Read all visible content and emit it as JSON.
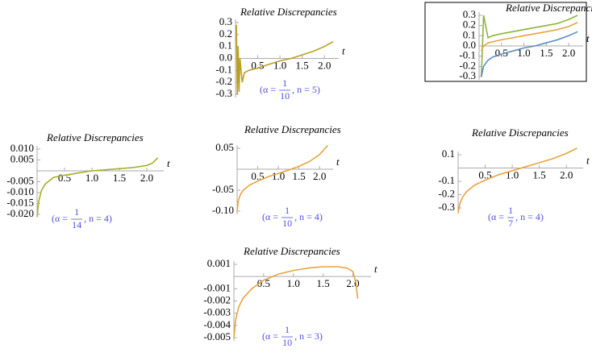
{
  "chart_data": [
    {
      "type": "line",
      "title": "Relative Discrepancies",
      "x_label": "t",
      "x": [
        0.02,
        0.04,
        0.06,
        0.08,
        0.1,
        0.15,
        0.2,
        0.3,
        0.5,
        0.75,
        1.0,
        1.25,
        1.5,
        1.75,
        2.0,
        2.2
      ],
      "series": [
        {
          "color": "#b9a020",
          "values": [
            0.28,
            -0.3,
            0.1,
            -0.28,
            0.0,
            -0.2,
            -0.12,
            -0.1,
            -0.08,
            -0.05,
            -0.02,
            0.0,
            0.03,
            0.06,
            0.1,
            0.14
          ]
        }
      ],
      "xlim": [
        0,
        2.25
      ],
      "ylim": [
        -0.3,
        0.3
      ],
      "xticks": [
        0.5,
        {
          "value": 1,
          "label": "1.0"
        },
        1.5,
        {
          "value": 2,
          "label": "2.0"
        }
      ],
      "yticks": [
        0.3,
        0.2,
        0.1,
        {
          "value": 0,
          "label": "0.0"
        },
        -0.1,
        -0.2,
        -0.3
      ],
      "annotation": {
        "lhs": "(α =",
        "numerator": "1",
        "denominator": "10",
        "rest": ", n = 5)"
      }
    },
    {
      "type": "line",
      "title": "Relative Discrepancies (shifted)",
      "x_label": "t",
      "x": [
        0.05,
        0.1,
        0.2,
        0.3,
        0.5,
        0.75,
        1.0,
        1.25,
        1.5,
        1.75,
        2.0,
        2.2
      ],
      "series": [
        {
          "color": "#8db33a",
          "values": [
            -0.3,
            0.3,
            0.08,
            0.1,
            0.12,
            0.14,
            0.16,
            0.18,
            0.2,
            0.22,
            0.26,
            0.3
          ]
        },
        {
          "color": "#e8a33c",
          "values": [
            -0.05,
            0.0,
            0.03,
            0.04,
            0.06,
            0.08,
            0.1,
            0.12,
            0.14,
            0.16,
            0.19,
            0.23
          ]
        },
        {
          "color": "#5b8cc4",
          "values": [
            -0.3,
            -0.2,
            -0.14,
            -0.11,
            -0.08,
            -0.05,
            -0.02,
            0.0,
            0.03,
            0.06,
            0.1,
            0.14
          ]
        }
      ],
      "xlim": [
        0,
        2.25
      ],
      "ylim": [
        -0.3,
        0.3
      ],
      "xticks": [
        0.5,
        {
          "value": 1,
          "label": "1.0"
        },
        1.5,
        {
          "value": 2,
          "label": "2.0"
        }
      ],
      "yticks": [
        0.3,
        0.2,
        0.1,
        {
          "value": 0,
          "label": "0.0"
        },
        -0.1,
        -0.2,
        -0.3
      ]
    },
    {
      "type": "line",
      "title": "Relative Discrepancies",
      "x_label": "t",
      "x": [
        0.0,
        0.03,
        0.08,
        0.15,
        0.3,
        0.5,
        0.75,
        1.0,
        1.25,
        1.5,
        1.75,
        2.0,
        2.1,
        2.2
      ],
      "series": [
        {
          "color": "#a8b028",
          "values": [
            -0.021,
            -0.014,
            -0.009,
            -0.006,
            -0.003,
            -0.002,
            -0.001,
            0.0,
            0.0005,
            0.001,
            0.0015,
            0.0025,
            0.0035,
            0.006
          ]
        }
      ],
      "xlim": [
        0,
        2.25
      ],
      "ylim": [
        -0.02,
        0.01
      ],
      "xticks": [
        0.5,
        {
          "value": 1,
          "label": "1.0"
        },
        1.5,
        {
          "value": 2,
          "label": "2.0"
        }
      ],
      "yticks": [
        {
          "value": 0.01,
          "label": "0.010"
        },
        0.005,
        -0.005,
        {
          "value": -0.01,
          "label": "-0.010"
        },
        -0.015,
        {
          "value": -0.02,
          "label": "-0.020"
        }
      ],
      "annotation": {
        "lhs": "(α =",
        "numerator": "1",
        "denominator": "14",
        "rest": ", n = 4)"
      }
    },
    {
      "type": "line",
      "title": "Relative Discrepancies",
      "x_label": "t",
      "x": [
        0.0,
        0.03,
        0.08,
        0.15,
        0.3,
        0.5,
        0.75,
        1.0,
        1.25,
        1.5,
        1.75,
        2.0,
        2.2
      ],
      "series": [
        {
          "color": "#e8a33c",
          "values": [
            -0.1,
            -0.075,
            -0.06,
            -0.05,
            -0.038,
            -0.028,
            -0.018,
            -0.01,
            -0.002,
            0.007,
            0.018,
            0.035,
            0.057
          ]
        }
      ],
      "xlim": [
        0,
        2.25
      ],
      "ylim": [
        -0.1,
        0.05
      ],
      "xticks": [
        0.5,
        {
          "value": 1,
          "label": "1.0"
        },
        1.5,
        {
          "value": 2,
          "label": "2.0"
        }
      ],
      "yticks": [
        0.05,
        -0.05,
        {
          "value": -0.1,
          "label": "-0.10"
        }
      ],
      "annotation": {
        "lhs": "(α =",
        "numerator": "1",
        "denominator": "10",
        "rest": ", n = 4)"
      }
    },
    {
      "type": "line",
      "title": "Relative Discrepancies",
      "x_label": "t",
      "x": [
        0.0,
        0.03,
        0.08,
        0.15,
        0.3,
        0.5,
        0.75,
        1.0,
        1.25,
        1.5,
        1.75,
        2.0,
        2.2
      ],
      "series": [
        {
          "color": "#e8a33c",
          "values": [
            -0.34,
            -0.27,
            -0.22,
            -0.18,
            -0.13,
            -0.09,
            -0.05,
            -0.02,
            0.01,
            0.04,
            0.07,
            0.11,
            0.15
          ]
        }
      ],
      "xlim": [
        0,
        2.25
      ],
      "ylim": [
        -0.3,
        0.1
      ],
      "xticks": [
        0.5,
        {
          "value": 1,
          "label": "1.0"
        },
        1.5,
        {
          "value": 2,
          "label": "2.0"
        }
      ],
      "yticks": [
        0.1,
        -0.1,
        -0.2,
        -0.3
      ],
      "annotation": {
        "lhs": "(α =",
        "numerator": "1",
        "denominator": "7",
        "rest": ", n = 4)"
      }
    },
    {
      "type": "line",
      "title": "Relative Discrepancies",
      "x_label": "t",
      "x": [
        0.0,
        0.03,
        0.08,
        0.15,
        0.3,
        0.5,
        0.75,
        1.0,
        1.25,
        1.5,
        1.75,
        1.9,
        2.0,
        2.05,
        2.08
      ],
      "series": [
        {
          "color": "#e8a33c",
          "values": [
            -0.005,
            -0.0035,
            -0.0025,
            -0.0018,
            -0.001,
            -0.0003,
            0.0002,
            0.0005,
            0.0007,
            0.0008,
            0.0008,
            0.0007,
            0.0004,
            -0.0005,
            -0.0018
          ]
        }
      ],
      "xlim": [
        0,
        2.25
      ],
      "ylim": [
        -0.005,
        0.001
      ],
      "xticks": [
        0.5,
        {
          "value": 1,
          "label": "1.0"
        },
        1.5,
        {
          "value": 2,
          "label": "2.0"
        }
      ],
      "yticks": [
        0.001,
        -0.001,
        -0.002,
        -0.003,
        -0.004,
        -0.005
      ],
      "annotation": {
        "lhs": "(α =",
        "numerator": "1",
        "denominator": "10",
        "rest": ", n = 3)"
      }
    }
  ]
}
